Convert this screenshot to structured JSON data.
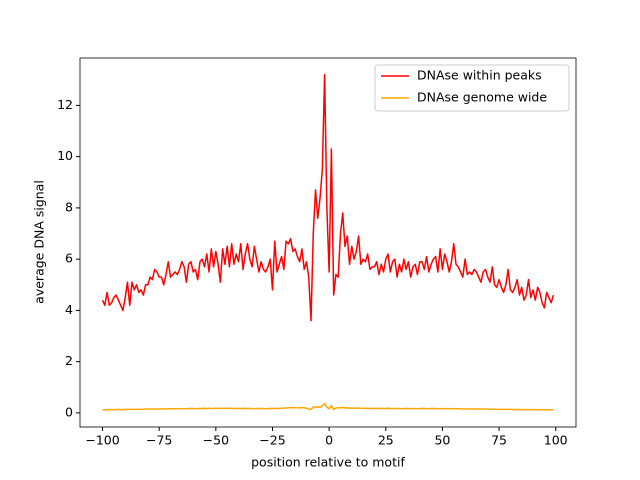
{
  "chart_data": {
    "type": "line",
    "xlabel": "position relative to motif",
    "ylabel": "average DNA signal",
    "x": [
      -100,
      -99,
      -98,
      -97,
      -96,
      -95,
      -94,
      -93,
      -92,
      -91,
      -90,
      -89,
      -88,
      -87,
      -86,
      -85,
      -84,
      -83,
      -82,
      -81,
      -80,
      -79,
      -78,
      -77,
      -76,
      -75,
      -74,
      -73,
      -72,
      -71,
      -70,
      -69,
      -68,
      -67,
      -66,
      -65,
      -64,
      -63,
      -62,
      -61,
      -60,
      -59,
      -58,
      -57,
      -56,
      -55,
      -54,
      -53,
      -52,
      -51,
      -50,
      -49,
      -48,
      -47,
      -46,
      -45,
      -44,
      -43,
      -42,
      -41,
      -40,
      -39,
      -38,
      -37,
      -36,
      -35,
      -34,
      -33,
      -32,
      -31,
      -30,
      -29,
      -28,
      -27,
      -26,
      -25,
      -24,
      -23,
      -22,
      -21,
      -20,
      -19,
      -18,
      -17,
      -16,
      -15,
      -14,
      -13,
      -12,
      -11,
      -10,
      -9,
      -8,
      -7,
      -6,
      -5,
      -4,
      -3,
      -2,
      -1,
      0,
      1,
      2,
      3,
      4,
      5,
      6,
      7,
      8,
      9,
      10,
      11,
      12,
      13,
      14,
      15,
      16,
      17,
      18,
      19,
      20,
      21,
      22,
      23,
      24,
      25,
      26,
      27,
      28,
      29,
      30,
      31,
      32,
      33,
      34,
      35,
      36,
      37,
      38,
      39,
      40,
      41,
      42,
      43,
      44,
      45,
      46,
      47,
      48,
      49,
      50,
      51,
      52,
      53,
      54,
      55,
      56,
      57,
      58,
      59,
      60,
      61,
      62,
      63,
      64,
      65,
      66,
      67,
      68,
      69,
      70,
      71,
      72,
      73,
      74,
      75,
      76,
      77,
      78,
      79,
      80,
      81,
      82,
      83,
      84,
      85,
      86,
      87,
      88,
      89,
      90,
      91,
      92,
      93,
      94,
      95,
      96,
      97,
      98,
      99
    ],
    "series": [
      {
        "name": "DNAse within peaks",
        "color": "#ff0000",
        "values": [
          4.4,
          4.2,
          4.7,
          4.2,
          4.3,
          4.5,
          4.6,
          4.4,
          4.2,
          4.0,
          4.5,
          5.1,
          4.2,
          5.1,
          4.8,
          5.0,
          4.7,
          4.8,
          4.6,
          5.0,
          5.0,
          5.3,
          5.2,
          5.6,
          5.5,
          5.3,
          5.3,
          5.0,
          5.4,
          5.9,
          5.3,
          5.4,
          5.5,
          5.4,
          5.6,
          5.9,
          5.7,
          5.1,
          5.8,
          5.9,
          5.5,
          5.6,
          5.2,
          5.9,
          6.0,
          5.7,
          6.2,
          5.5,
          6.4,
          5.7,
          6.3,
          5.8,
          5.1,
          6.4,
          5.8,
          6.5,
          5.7,
          6.6,
          5.8,
          6.2,
          5.9,
          6.6,
          5.6,
          6.2,
          6.6,
          6.0,
          5.7,
          6.5,
          6.0,
          5.5,
          5.9,
          5.6,
          5.5,
          5.7,
          6.0,
          4.8,
          6.7,
          5.5,
          5.8,
          6.1,
          5.6,
          6.7,
          6.6,
          6.8,
          6.3,
          6.4,
          6.1,
          5.9,
          6.4,
          5.6,
          5.9,
          5.3,
          3.6,
          7.0,
          8.7,
          7.6,
          8.4,
          9.5,
          13.2,
          8.0,
          5.5,
          10.3,
          4.6,
          5.4,
          5.3,
          7.0,
          7.8,
          6.5,
          6.9,
          5.8,
          6.5,
          6.0,
          6.3,
          6.9,
          5.8,
          6.0,
          5.9,
          6.2,
          5.6,
          5.7,
          5.7,
          5.9,
          5.4,
          5.8,
          5.5,
          6.0,
          6.2,
          5.5,
          5.9,
          6.0,
          5.3,
          5.8,
          5.5,
          6.0,
          5.6,
          5.9,
          5.3,
          5.7,
          5.8,
          5.4,
          5.9,
          5.9,
          5.6,
          6.1,
          5.5,
          5.8,
          6.0,
          6.1,
          5.5,
          6.4,
          5.6,
          6.2,
          5.9,
          5.5,
          5.9,
          6.6,
          5.8,
          5.7,
          5.5,
          5.3,
          6.0,
          5.4,
          5.5,
          5.4,
          5.6,
          5.5,
          5.3,
          5.1,
          5.5,
          5.6,
          5.3,
          5.1,
          5.7,
          5.0,
          4.9,
          5.2,
          4.9,
          4.7,
          5.0,
          5.6,
          4.8,
          4.7,
          4.9,
          5.2,
          4.6,
          4.9,
          4.4,
          4.6,
          5.2,
          4.5,
          4.8,
          4.4,
          4.9,
          4.7,
          4.3,
          4.1,
          4.7,
          4.5,
          4.3,
          4.6
        ]
      },
      {
        "name": "DNAse genome wide",
        "color": "#ffa500",
        "values": [
          0.12,
          0.12,
          0.13,
          0.13,
          0.13,
          0.13,
          0.13,
          0.14,
          0.13,
          0.13,
          0.14,
          0.14,
          0.14,
          0.14,
          0.14,
          0.14,
          0.14,
          0.15,
          0.14,
          0.15,
          0.15,
          0.15,
          0.15,
          0.15,
          0.15,
          0.15,
          0.16,
          0.15,
          0.16,
          0.16,
          0.16,
          0.16,
          0.16,
          0.16,
          0.16,
          0.17,
          0.16,
          0.16,
          0.17,
          0.17,
          0.17,
          0.16,
          0.17,
          0.17,
          0.17,
          0.18,
          0.17,
          0.18,
          0.17,
          0.17,
          0.18,
          0.18,
          0.17,
          0.18,
          0.18,
          0.17,
          0.18,
          0.18,
          0.17,
          0.17,
          0.17,
          0.17,
          0.18,
          0.17,
          0.17,
          0.17,
          0.17,
          0.16,
          0.17,
          0.17,
          0.17,
          0.17,
          0.16,
          0.17,
          0.17,
          0.17,
          0.17,
          0.18,
          0.17,
          0.18,
          0.18,
          0.19,
          0.2,
          0.2,
          0.21,
          0.2,
          0.2,
          0.19,
          0.21,
          0.2,
          0.18,
          0.15,
          0.14,
          0.22,
          0.24,
          0.22,
          0.23,
          0.27,
          0.36,
          0.22,
          0.16,
          0.28,
          0.14,
          0.19,
          0.2,
          0.2,
          0.21,
          0.19,
          0.2,
          0.18,
          0.19,
          0.18,
          0.18,
          0.19,
          0.18,
          0.18,
          0.17,
          0.18,
          0.17,
          0.18,
          0.17,
          0.17,
          0.17,
          0.18,
          0.17,
          0.17,
          0.18,
          0.17,
          0.17,
          0.17,
          0.17,
          0.17,
          0.16,
          0.17,
          0.17,
          0.17,
          0.16,
          0.17,
          0.17,
          0.16,
          0.17,
          0.17,
          0.17,
          0.17,
          0.16,
          0.17,
          0.17,
          0.17,
          0.16,
          0.17,
          0.16,
          0.17,
          0.16,
          0.16,
          0.16,
          0.17,
          0.16,
          0.16,
          0.16,
          0.15,
          0.16,
          0.15,
          0.15,
          0.15,
          0.15,
          0.15,
          0.15,
          0.15,
          0.15,
          0.15,
          0.15,
          0.14,
          0.15,
          0.14,
          0.14,
          0.14,
          0.14,
          0.14,
          0.14,
          0.14,
          0.14,
          0.13,
          0.14,
          0.13,
          0.14,
          0.13,
          0.13,
          0.13,
          0.13,
          0.13,
          0.13,
          0.13,
          0.13,
          0.12,
          0.13,
          0.12,
          0.12,
          0.12,
          0.12,
          0.12
        ]
      }
    ],
    "xlim": [
      -109.95,
      108.95
    ],
    "ylim": [
      -0.55,
      13.85
    ],
    "xticks": [
      {
        "value": -100,
        "label": "−100"
      },
      {
        "value": -75,
        "label": "−75"
      },
      {
        "value": -50,
        "label": "−50"
      },
      {
        "value": -25,
        "label": "−25"
      },
      0,
      25,
      50,
      75,
      100
    ],
    "yticks": [
      0,
      2,
      4,
      6,
      8,
      10,
      12
    ],
    "legend": "upper right"
  }
}
